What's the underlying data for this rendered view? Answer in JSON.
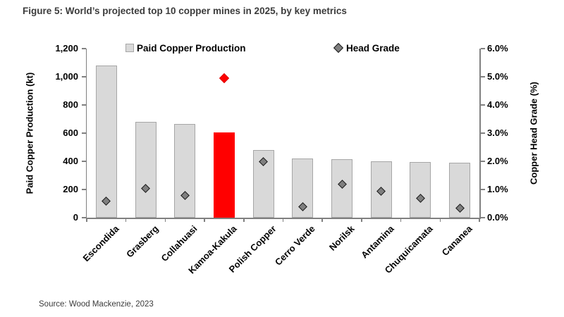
{
  "figure": {
    "title": "Figure 5: World’s projected top 10 copper mines in 2025, by key metrics",
    "source": "Source: Wood Mackenzie, 2023"
  },
  "chart_data": {
    "type": "bar",
    "subtype": "bar-with-scatter-markers-dual-axis",
    "title": "Figure 5: World’s projected top 10 copper mines in 2025, by key metrics",
    "categories": [
      "Escondida",
      "Grasberg",
      "Collahuasi",
      "Kamoa-Kakula",
      "Polish Copper",
      "Cerro Verde",
      "Norilsk",
      "Antamina",
      "Chuquicamata",
      "Cananea"
    ],
    "series": [
      {
        "name": "Paid Copper Production",
        "type": "bar",
        "axis": "left",
        "unit": "kt",
        "values": [
          1080,
          680,
          665,
          605,
          480,
          420,
          415,
          400,
          395,
          390
        ]
      },
      {
        "name": "Head Grade",
        "type": "scatter",
        "marker": "diamond",
        "axis": "right",
        "unit": "%",
        "values": [
          0.6,
          1.05,
          0.8,
          4.95,
          2.0,
          0.4,
          1.2,
          0.95,
          0.7,
          0.35
        ]
      }
    ],
    "highlight_category": "Kamoa-Kakula",
    "highlight_index": 3,
    "left_axis": {
      "label": "Paid Copper Production (kt)",
      "min": 0,
      "max": 1200,
      "step": 200,
      "tick_labels": [
        "0",
        "200",
        "400",
        "600",
        "800",
        "1,000",
        "1,200"
      ]
    },
    "right_axis": {
      "label": "Copper Head Grade (%)",
      "min": 0,
      "max": 6,
      "step": 1,
      "tick_labels": [
        "0.0%",
        "1.0%",
        "2.0%",
        "3.0%",
        "4.0%",
        "5.0%",
        "6.0%"
      ]
    },
    "legend": [
      {
        "label": "Paid Copper Production",
        "marker": "square"
      },
      {
        "label": "Head Grade",
        "marker": "diamond"
      }
    ],
    "legend_position": "top-inside",
    "grid": false,
    "colors": {
      "bar_fill": "#d9d9d9",
      "bar_border": "#a6a6a6",
      "highlight": "#ff0000",
      "highlight_border": "#e00000",
      "marker_fill": "#7f7f7f",
      "marker_border": "#1a1a1a",
      "axis_line": "#808080",
      "text": "#000000",
      "title_text": "#3c3c3c"
    },
    "source": "Source: Wood Mackenzie, 2023"
  }
}
